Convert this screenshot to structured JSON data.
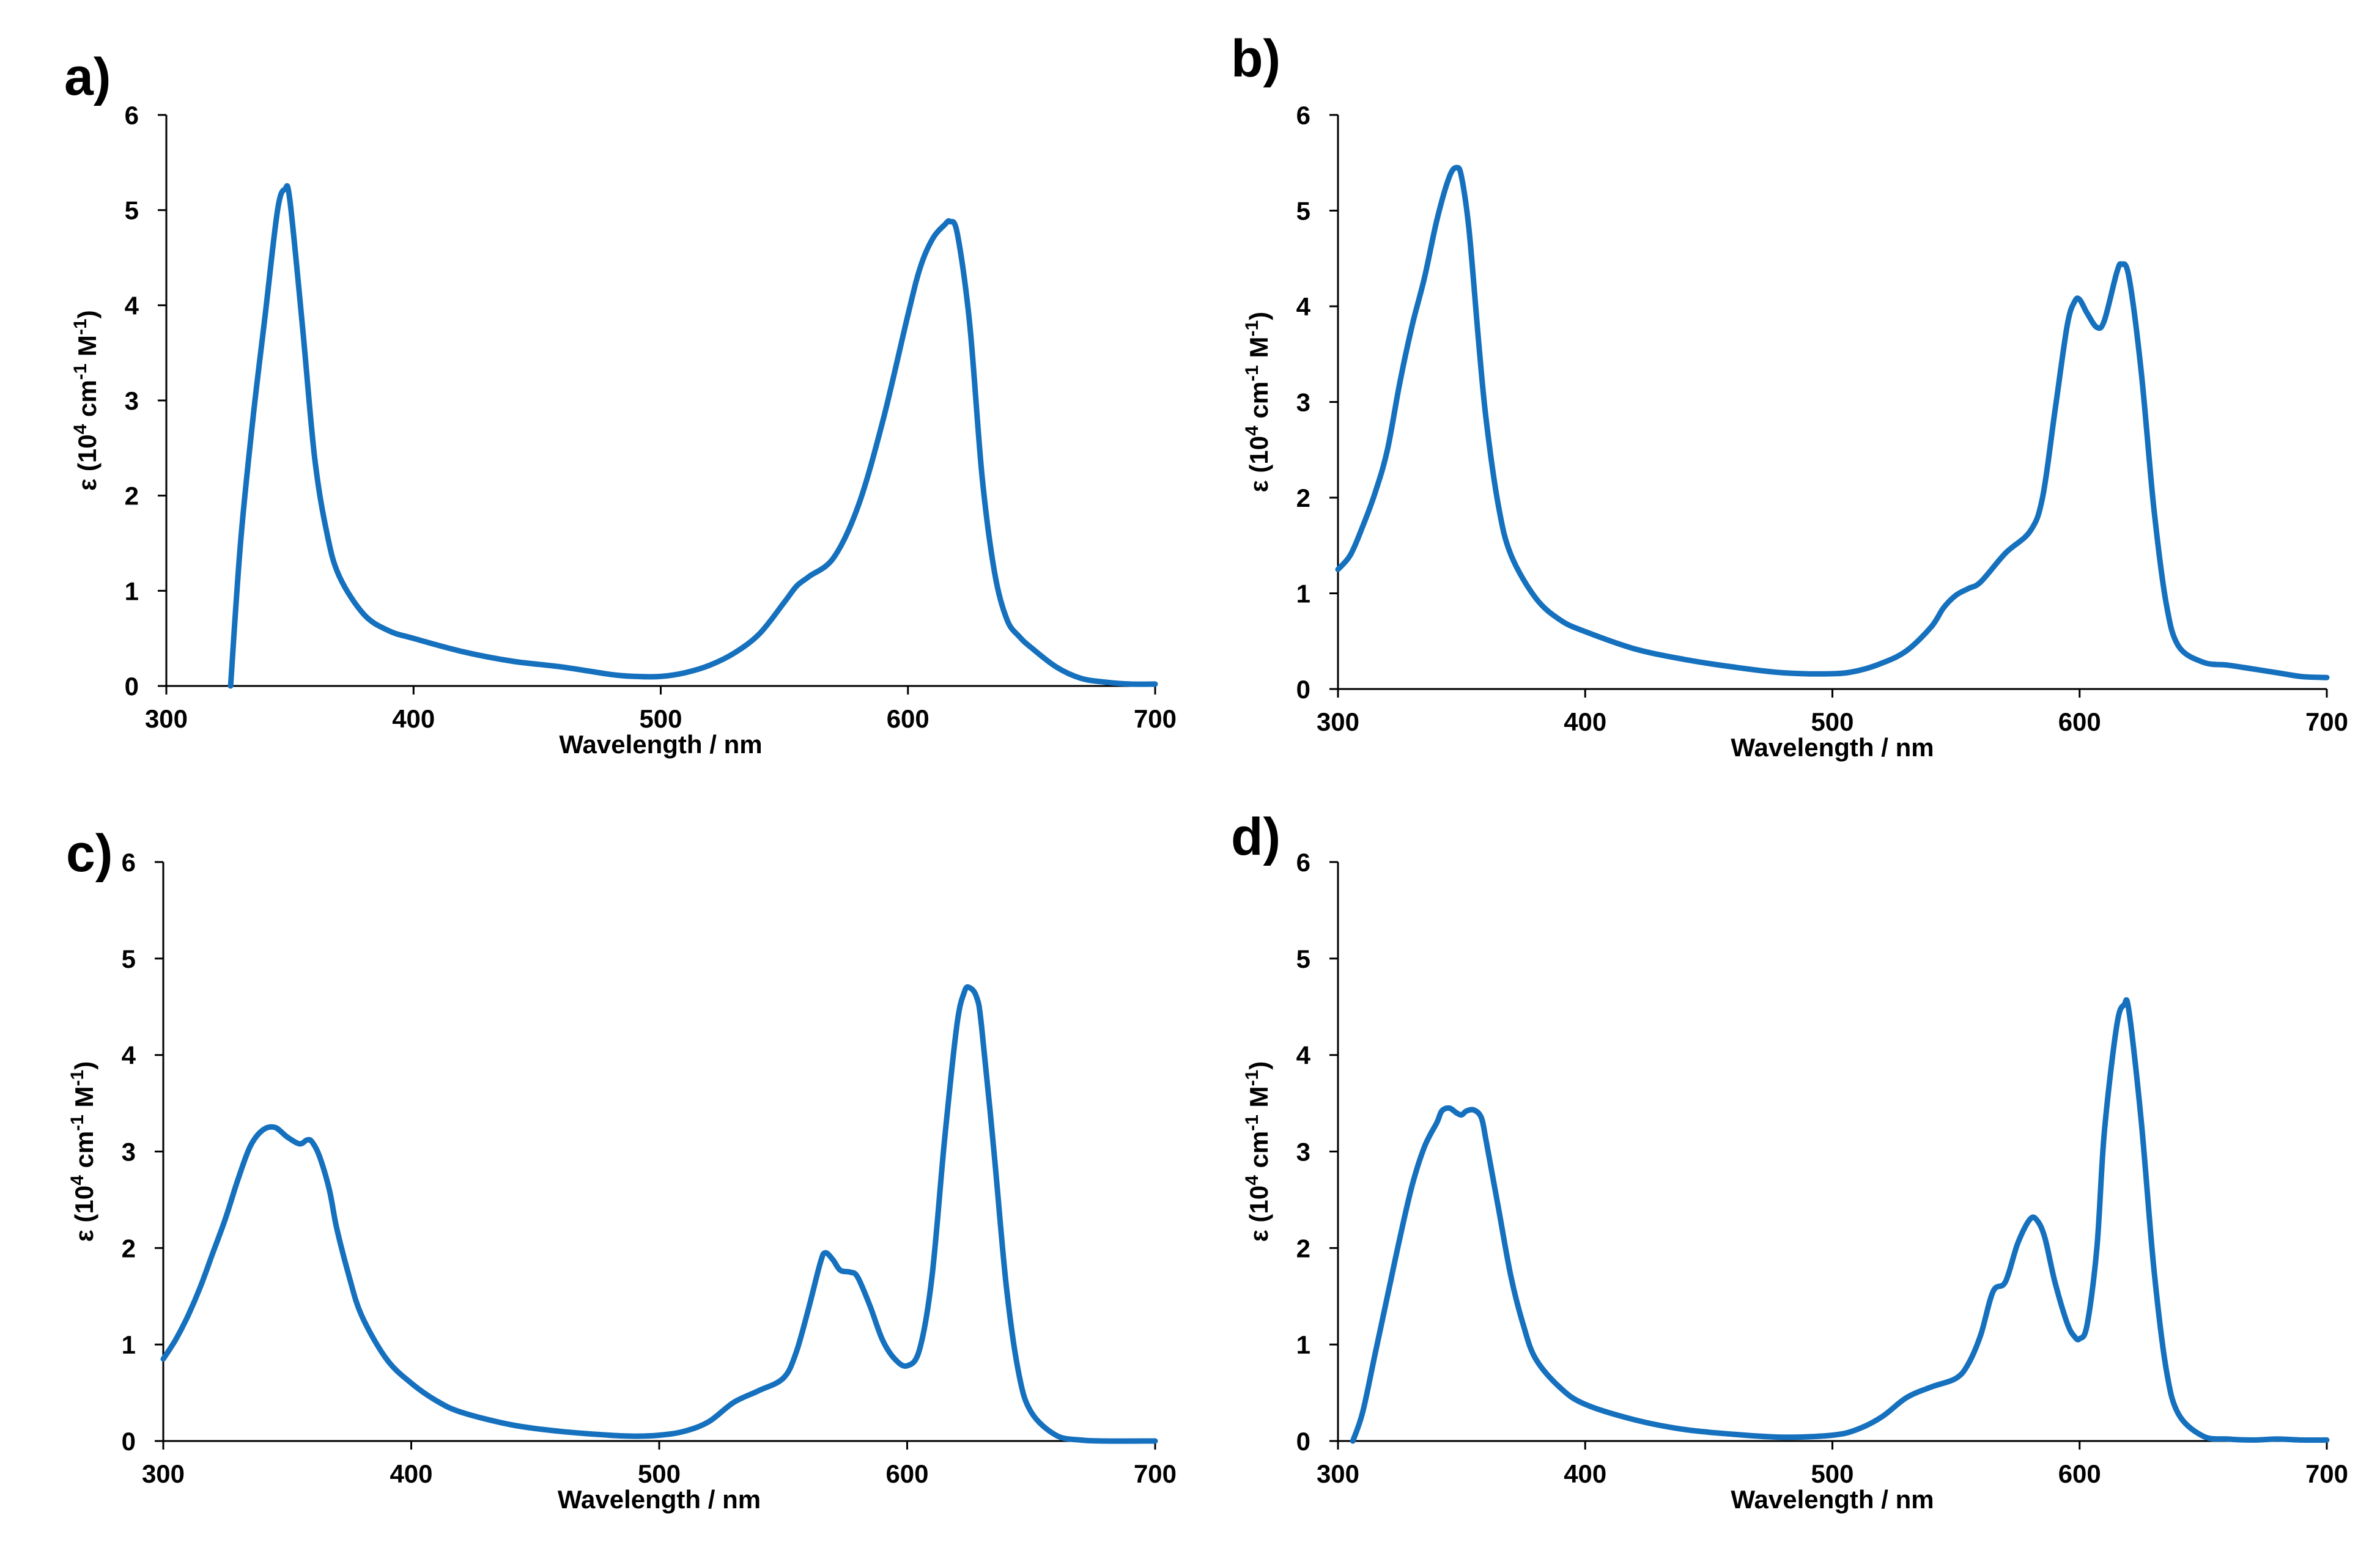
{
  "figure": {
    "line_color": "#1570BE",
    "axis_color": "#000000"
  },
  "chart_data": [
    {
      "type": "line",
      "panel_label": "a)",
      "xlabel": "Wavelength / nm",
      "ylabel": {
        "prefix": "ε (10",
        "exp1": "4",
        "mid": " cm",
        "exp2": "-1",
        "end": " M",
        "exp3": "-1",
        "close": ")"
      },
      "xlim": [
        300,
        700
      ],
      "ylim": [
        0,
        6
      ],
      "xticks": [
        300,
        400,
        500,
        600,
        700
      ],
      "yticks": [
        0,
        1,
        2,
        3,
        4,
        5,
        6
      ],
      "grid": false,
      "series": [
        {
          "name": "a",
          "x": [
            326,
            330,
            335,
            340,
            345,
            348,
            350,
            355,
            360,
            365,
            370,
            380,
            390,
            400,
            420,
            440,
            460,
            480,
            490,
            500,
            510,
            520,
            530,
            540,
            550,
            555,
            560,
            570,
            580,
            590,
            600,
            605,
            610,
            615,
            617,
            620,
            625,
            630,
            635,
            640,
            645,
            650,
            660,
            670,
            680,
            690,
            700
          ],
          "y": [
            0,
            1.5,
            2.8,
            3.9,
            5.0,
            5.22,
            5.1,
            3.8,
            2.4,
            1.6,
            1.15,
            0.75,
            0.58,
            0.5,
            0.36,
            0.26,
            0.2,
            0.12,
            0.1,
            0.1,
            0.14,
            0.22,
            0.35,
            0.55,
            0.88,
            1.05,
            1.15,
            1.35,
            1.9,
            2.8,
            3.9,
            4.4,
            4.7,
            4.85,
            4.88,
            4.75,
            3.8,
            2.2,
            1.2,
            0.7,
            0.52,
            0.4,
            0.2,
            0.08,
            0.04,
            0.02,
            0.02
          ]
        }
      ]
    },
    {
      "type": "line",
      "panel_label": "b)",
      "xlabel": "Wavelength / nm",
      "ylabel": {
        "prefix": "ε (10",
        "exp1": "4",
        "mid": " cm",
        "exp2": "-1",
        "end": " M",
        "exp3": "-1",
        "close": ")"
      },
      "xlim": [
        300,
        700
      ],
      "ylim": [
        0,
        6
      ],
      "xticks": [
        300,
        400,
        500,
        600,
        700
      ],
      "yticks": [
        0,
        1,
        2,
        3,
        4,
        5,
        6
      ],
      "grid": false,
      "series": [
        {
          "name": "b",
          "x": [
            300,
            305,
            310,
            315,
            320,
            325,
            330,
            335,
            340,
            345,
            348,
            350,
            353,
            357,
            360,
            365,
            370,
            380,
            390,
            400,
            420,
            440,
            460,
            480,
            500,
            510,
            520,
            530,
            540,
            545,
            550,
            555,
            560,
            570,
            580,
            585,
            590,
            595,
            598,
            600,
            603,
            607,
            610,
            615,
            617,
            620,
            625,
            630,
            635,
            640,
            650,
            660,
            670,
            680,
            690,
            700
          ],
          "y": [
            1.25,
            1.4,
            1.7,
            2.05,
            2.5,
            3.2,
            3.8,
            4.3,
            4.9,
            5.35,
            5.45,
            5.35,
            4.8,
            3.6,
            2.8,
            1.9,
            1.4,
            0.95,
            0.72,
            0.6,
            0.42,
            0.31,
            0.23,
            0.17,
            0.16,
            0.19,
            0.27,
            0.4,
            0.65,
            0.85,
            0.98,
            1.05,
            1.12,
            1.42,
            1.65,
            2.0,
            2.9,
            3.8,
            4.05,
            4.07,
            3.93,
            3.78,
            3.85,
            4.35,
            4.44,
            4.3,
            3.3,
            1.9,
            0.9,
            0.45,
            0.28,
            0.25,
            0.21,
            0.17,
            0.13,
            0.12
          ]
        }
      ]
    },
    {
      "type": "line",
      "panel_label": "c)",
      "xlabel": "Wavelength / nm",
      "ylabel": {
        "prefix": "ε (10",
        "exp1": "4",
        "mid": " cm",
        "exp2": "-1",
        "end": " M",
        "exp3": "-1",
        "close": ")"
      },
      "xlim": [
        300,
        700
      ],
      "ylim": [
        0,
        6
      ],
      "xticks": [
        300,
        400,
        500,
        600,
        700
      ],
      "yticks": [
        0,
        1,
        2,
        3,
        4,
        5,
        6
      ],
      "grid": false,
      "series": [
        {
          "name": "c",
          "x": [
            300,
            305,
            310,
            315,
            320,
            325,
            330,
            335,
            340,
            345,
            350,
            355,
            358,
            360,
            363,
            367,
            370,
            375,
            380,
            390,
            400,
            410,
            420,
            440,
            460,
            480,
            490,
            500,
            510,
            520,
            530,
            540,
            550,
            555,
            560,
            565,
            567,
            570,
            573,
            577,
            580,
            585,
            590,
            595,
            600,
            605,
            610,
            615,
            620,
            623,
            625,
            628,
            630,
            635,
            640,
            645,
            650,
            660,
            670,
            680,
            700
          ],
          "y": [
            0.85,
            1.05,
            1.3,
            1.6,
            1.95,
            2.3,
            2.7,
            3.05,
            3.22,
            3.25,
            3.15,
            3.08,
            3.12,
            3.1,
            2.95,
            2.6,
            2.2,
            1.7,
            1.3,
            0.85,
            0.6,
            0.42,
            0.3,
            0.17,
            0.1,
            0.06,
            0.05,
            0.06,
            0.1,
            0.2,
            0.4,
            0.52,
            0.65,
            0.9,
            1.35,
            1.85,
            1.95,
            1.88,
            1.77,
            1.75,
            1.7,
            1.4,
            1.05,
            0.85,
            0.78,
            0.95,
            1.7,
            3.1,
            4.3,
            4.65,
            4.7,
            4.6,
            4.3,
            3.0,
            1.6,
            0.7,
            0.3,
            0.06,
            0.01,
            0.0,
            0.0
          ]
        }
      ]
    },
    {
      "type": "line",
      "panel_label": "d)",
      "xlabel": "Wavelength / nm",
      "ylabel": {
        "prefix": "ε (10",
        "exp1": "4",
        "mid": " cm",
        "exp2": "-1",
        "end": " M",
        "exp3": "-1",
        "close": ")"
      },
      "xlim": [
        300,
        700
      ],
      "ylim": [
        0,
        6
      ],
      "xticks": [
        300,
        400,
        500,
        600,
        700
      ],
      "yticks": [
        0,
        1,
        2,
        3,
        4,
        5,
        6
      ],
      "grid": false,
      "series": [
        {
          "name": "d",
          "x": [
            306,
            310,
            315,
            320,
            325,
            330,
            335,
            340,
            342,
            345,
            348,
            350,
            352,
            355,
            358,
            360,
            365,
            370,
            375,
            380,
            390,
            400,
            420,
            440,
            460,
            480,
            500,
            510,
            520,
            530,
            540,
            550,
            555,
            560,
            565,
            570,
            575,
            580,
            583,
            586,
            590,
            595,
            598,
            600,
            603,
            607,
            610,
            615,
            618,
            620,
            625,
            630,
            635,
            640,
            650,
            660,
            670,
            680,
            690,
            700
          ],
          "y": [
            0,
            0.3,
            0.9,
            1.5,
            2.1,
            2.65,
            3.05,
            3.3,
            3.42,
            3.45,
            3.4,
            3.38,
            3.42,
            3.43,
            3.35,
            3.1,
            2.4,
            1.7,
            1.2,
            0.85,
            0.55,
            0.38,
            0.22,
            0.12,
            0.07,
            0.04,
            0.06,
            0.12,
            0.25,
            0.45,
            0.56,
            0.65,
            0.8,
            1.1,
            1.55,
            1.65,
            2.05,
            2.3,
            2.28,
            2.1,
            1.65,
            1.22,
            1.08,
            1.06,
            1.2,
            2.0,
            3.2,
            4.3,
            4.52,
            4.45,
            3.3,
            1.8,
            0.75,
            0.28,
            0.05,
            0.02,
            0.01,
            0.02,
            0.01,
            0.01
          ]
        }
      ]
    }
  ]
}
